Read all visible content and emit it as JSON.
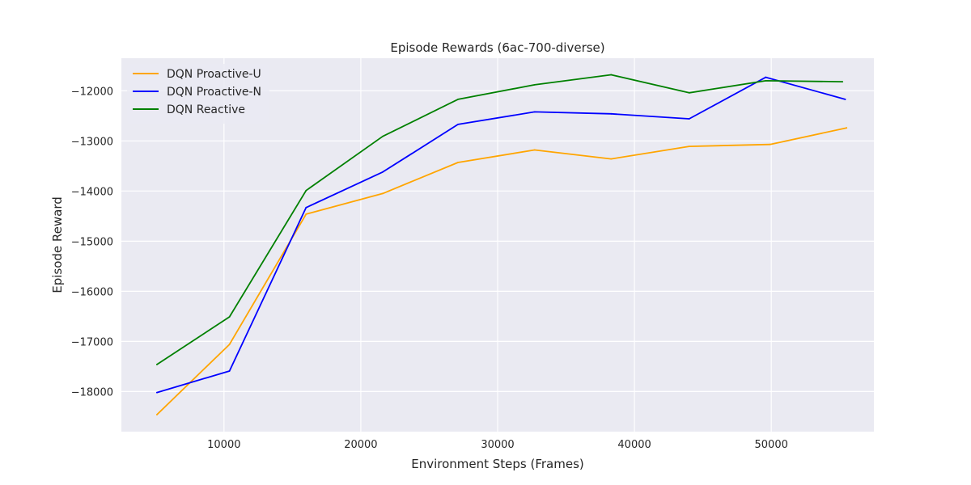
{
  "chart_data": {
    "type": "line",
    "title": "Episode Rewards (6ac-700-diverse)",
    "xlabel": "Environment Steps (Frames)",
    "ylabel": "Episode Reward",
    "xlim": [
      2500,
      57500
    ],
    "ylim": [
      -18800,
      -11350
    ],
    "xticks": [
      10000,
      20000,
      30000,
      40000,
      50000
    ],
    "xtick_labels": [
      "10000",
      "20000",
      "30000",
      "40000",
      "50000"
    ],
    "yticks": [
      -18000,
      -17000,
      -16000,
      -15000,
      -14000,
      -13000,
      -12000
    ],
    "ytick_labels": [
      "−18000",
      "−17000",
      "−16000",
      "−15000",
      "−14000",
      "−13000",
      "−12000"
    ],
    "grid": true,
    "legend_position": "top-left",
    "series": [
      {
        "name": "DQN Proactive-U",
        "color": "#ffa500",
        "x": [
          5100,
          10400,
          16000,
          21600,
          27100,
          32700,
          38300,
          44000,
          49900,
          55500
        ],
        "y": [
          -18460,
          -17060,
          -14460,
          -14050,
          -13430,
          -13180,
          -13360,
          -13110,
          -13070,
          -12740
        ]
      },
      {
        "name": "DQN Proactive-N",
        "color": "#0000ff",
        "x": [
          5100,
          10400,
          16000,
          21600,
          27100,
          32700,
          38300,
          44000,
          49600,
          55400
        ],
        "y": [
          -18020,
          -17590,
          -14330,
          -13620,
          -12670,
          -12420,
          -12460,
          -12560,
          -11730,
          -12170
        ]
      },
      {
        "name": "DQN Reactive",
        "color": "#008000",
        "x": [
          5100,
          10400,
          16000,
          21600,
          27100,
          32700,
          38300,
          44000,
          49600,
          55200
        ],
        "y": [
          -17460,
          -16510,
          -13990,
          -12910,
          -12170,
          -11880,
          -11680,
          -12040,
          -11800,
          -11820
        ]
      }
    ]
  }
}
